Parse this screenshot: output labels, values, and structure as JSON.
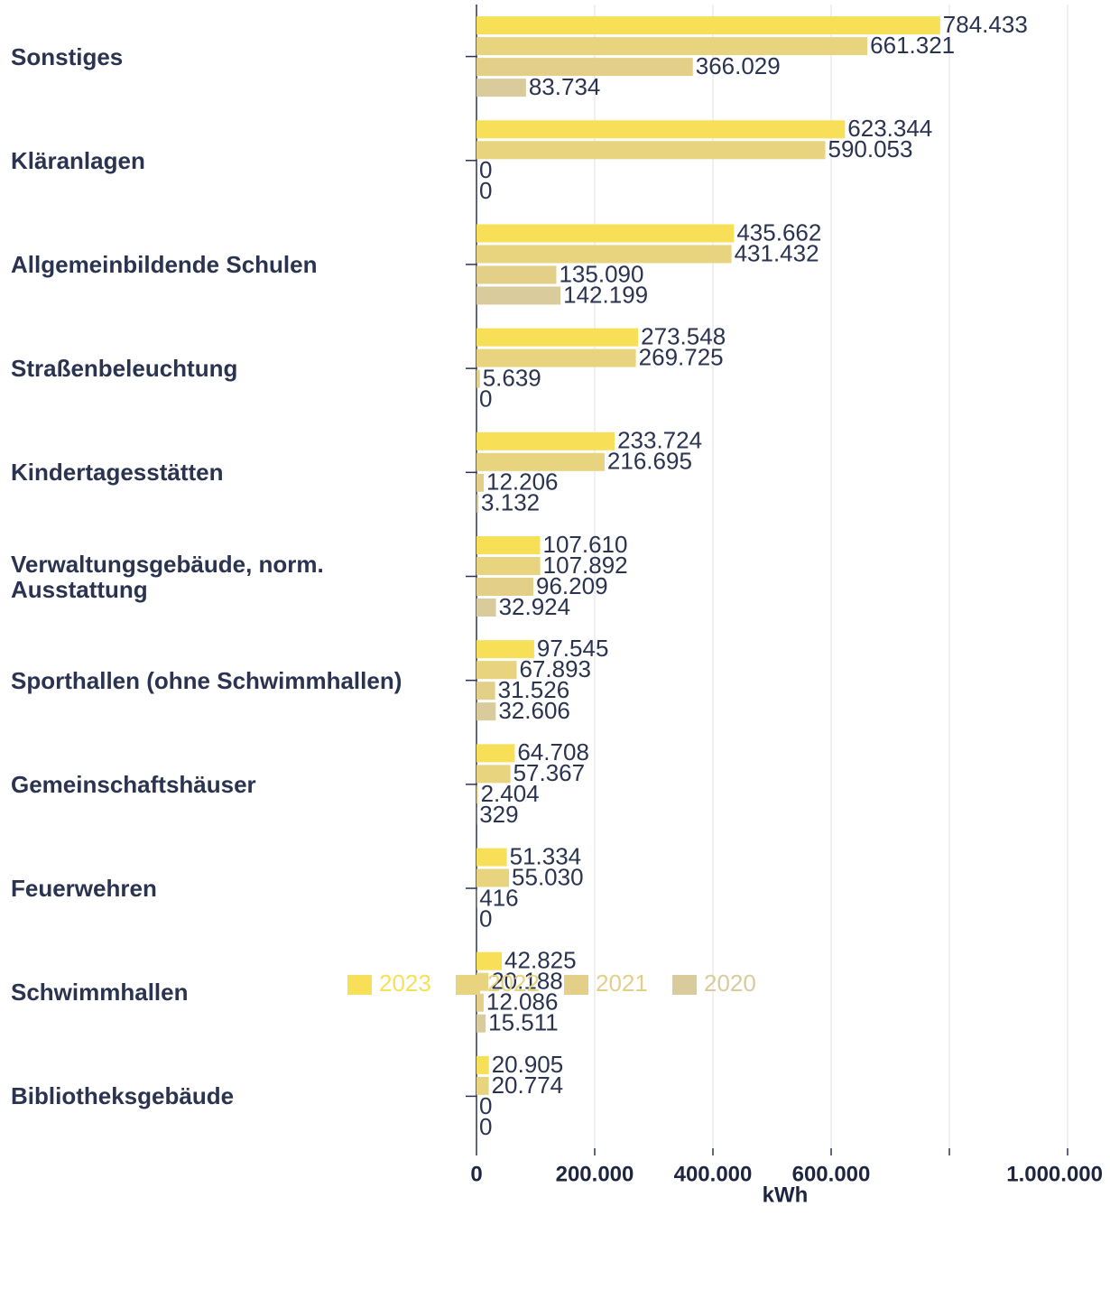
{
  "chart_data": {
    "type": "barh",
    "categories": [
      "Sonstiges",
      "Kläranlagen",
      "Allgemeinbildende Schulen",
      "Straßenbeleuchtung",
      "Kindertagesstätten",
      "Verwaltungsgebäude, norm. Ausstattung",
      "Sporthallen (ohne Schwimmhallen)",
      "Gemeinschaftshäuser",
      "Feuerwehren",
      "Schwimmhallen",
      "Bibliotheksgebäude"
    ],
    "series": [
      {
        "name": "2023",
        "color": "#f7df57",
        "values": [
          784433,
          623344,
          435662,
          273548,
          233724,
          107610,
          97545,
          64708,
          51334,
          42825,
          20905
        ],
        "value_labels": [
          "784.433",
          "623.344",
          "435.662",
          "273.548",
          "233.724",
          "107.610",
          "97.545",
          "64.708",
          "51.334",
          "42.825",
          "20.905"
        ]
      },
      {
        "name": "2022",
        "color": "#e8d37f",
        "values": [
          661321,
          590053,
          431432,
          269725,
          216695,
          107892,
          67893,
          57367,
          55030,
          20188,
          20774
        ],
        "value_labels": [
          "661.321",
          "590.053",
          "431.432",
          "269.725",
          "216.695",
          "107.892",
          "67.893",
          "57.367",
          "55.030",
          "20.188",
          "20.774"
        ]
      },
      {
        "name": "2021",
        "color": "#e3cf88",
        "values": [
          366029,
          0,
          135090,
          5639,
          12206,
          96209,
          31526,
          2404,
          416,
          12086,
          0
        ],
        "value_labels": [
          "366.029",
          "0",
          "135.090",
          "5.639",
          "12.206",
          "96.209",
          "31.526",
          "2.404",
          "416",
          "12.086",
          "0"
        ]
      },
      {
        "name": "2020",
        "color": "#d9cb9c",
        "values": [
          83734,
          0,
          142199,
          0,
          3132,
          32924,
          32606,
          329,
          0,
          15511,
          0
        ],
        "value_labels": [
          "83.734",
          "0",
          "142.199",
          "0",
          "3.132",
          "32.924",
          "32.606",
          "329",
          "0",
          "15.511",
          "0"
        ]
      }
    ],
    "xlabel": "kWh",
    "xlim": [
      0,
      1040000
    ],
    "xticks": [
      0,
      {
        "value": 200000,
        "label": "200.000"
      },
      {
        "value": 400000,
        "label": "400.000"
      },
      {
        "value": 600000,
        "label": "600.000"
      },
      {
        "value": 800000,
        "label": null
      },
      {
        "value": 1000000,
        "label": "1.000.000"
      }
    ],
    "grid": true
  }
}
